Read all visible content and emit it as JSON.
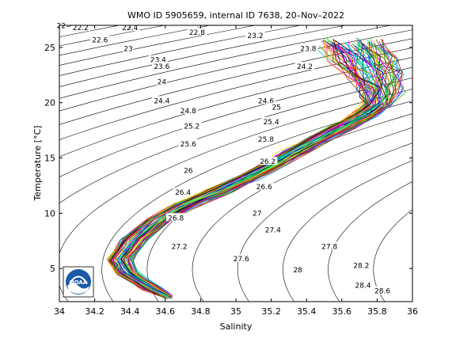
{
  "chart_data": {
    "type": "line",
    "title": "WMO ID 5905659, internal ID 7638, 20–Nov–2022",
    "xlabel": "Salinity",
    "ylabel": "Temperature [°C]",
    "xlim": [
      34,
      36
    ],
    "ylim": [
      2,
      27
    ],
    "x_ticks": [
      "34",
      "34.2",
      "34.4",
      "34.6",
      "34.8",
      "35",
      "35.2",
      "35.4",
      "35.6",
      "35.8",
      "36"
    ],
    "y_ticks": [
      "5",
      "10",
      "15",
      "20",
      "25"
    ],
    "grid": false,
    "isopycnal_labels": [
      {
        "text": "22",
        "s": 34.01,
        "t": 26.9
      },
      {
        "text": "22.2",
        "s": 34.12,
        "t": 26.7
      },
      {
        "text": "22.4",
        "s": 34.4,
        "t": 26.7
      },
      {
        "text": "22.6",
        "s": 34.23,
        "t": 25.6
      },
      {
        "text": "22.8",
        "s": 34.78,
        "t": 26.3
      },
      {
        "text": "23",
        "s": 34.39,
        "t": 24.8
      },
      {
        "text": "23.2",
        "s": 35.11,
        "t": 26.0
      },
      {
        "text": "23.4",
        "s": 34.56,
        "t": 23.8
      },
      {
        "text": "23.6",
        "s": 34.58,
        "t": 23.2
      },
      {
        "text": "23.8",
        "s": 35.41,
        "t": 24.8
      },
      {
        "text": "24",
        "s": 34.58,
        "t": 21.8
      },
      {
        "text": "24.2",
        "s": 35.39,
        "t": 23.2
      },
      {
        "text": "24.4",
        "s": 34.58,
        "t": 20.1
      },
      {
        "text": "24.6",
        "s": 35.17,
        "t": 20.1
      },
      {
        "text": "24.8",
        "s": 34.73,
        "t": 19.2
      },
      {
        "text": "25",
        "s": 35.23,
        "t": 19.5
      },
      {
        "text": "25.2",
        "s": 34.75,
        "t": 17.8
      },
      {
        "text": "25.4",
        "s": 35.2,
        "t": 18.2
      },
      {
        "text": "25.6",
        "s": 34.73,
        "t": 16.2
      },
      {
        "text": "25.8",
        "s": 35.17,
        "t": 16.6
      },
      {
        "text": "26",
        "s": 34.73,
        "t": 13.8
      },
      {
        "text": "26.2",
        "s": 35.18,
        "t": 14.6
      },
      {
        "text": "26.4",
        "s": 34.7,
        "t": 11.8
      },
      {
        "text": "26.6",
        "s": 35.16,
        "t": 12.3
      },
      {
        "text": "26.8",
        "s": 34.66,
        "t": 9.5
      },
      {
        "text": "27",
        "s": 35.12,
        "t": 9.9
      },
      {
        "text": "27.2",
        "s": 34.68,
        "t": 6.9
      },
      {
        "text": "27.4",
        "s": 35.21,
        "t": 8.4
      },
      {
        "text": "27.6",
        "s": 35.03,
        "t": 5.8
      },
      {
        "text": "27.8",
        "s": 35.53,
        "t": 6.9
      },
      {
        "text": "28",
        "s": 35.35,
        "t": 4.8
      },
      {
        "text": "28.2",
        "s": 35.71,
        "t": 5.2
      },
      {
        "text": "28.4",
        "s": 35.72,
        "t": 3.4
      },
      {
        "text": "28.6",
        "s": 35.83,
        "t": 2.9
      }
    ],
    "profile_envelope": {
      "center": [
        [
          34.62,
          2.4
        ],
        [
          34.52,
          3.2
        ],
        [
          34.38,
          4.6
        ],
        [
          34.34,
          5.8
        ],
        [
          34.42,
          7.6
        ],
        [
          34.56,
          9.4
        ],
        [
          34.72,
          10.8
        ],
        [
          34.9,
          12.0
        ],
        [
          35.06,
          13.2
        ],
        [
          35.2,
          14.4
        ],
        [
          35.34,
          15.6
        ],
        [
          35.48,
          16.8
        ],
        [
          35.6,
          17.8
        ],
        [
          35.72,
          18.8
        ],
        [
          35.8,
          19.8
        ],
        [
          35.82,
          21.0
        ],
        [
          35.78,
          22.5
        ],
        [
          35.72,
          24.0
        ],
        [
          35.66,
          25.4
        ]
      ],
      "half_width": [
        0.02,
        0.05,
        0.06,
        0.07,
        0.07,
        0.07,
        0.07,
        0.07,
        0.07,
        0.07,
        0.07,
        0.07,
        0.07,
        0.07,
        0.08,
        0.1,
        0.13,
        0.16,
        0.18
      ],
      "profile_count": 70
    },
    "series_colors": [
      "#0000ff",
      "#ff0000",
      "#00a000",
      "#ff00ff",
      "#00c8c8",
      "#8c00ff",
      "#ff8000",
      "#000000",
      "#0080ff",
      "#c00060",
      "#40c000",
      "#ffcc00",
      "#804000",
      "#00ff80"
    ]
  },
  "logo": {
    "text": "NOAA"
  }
}
